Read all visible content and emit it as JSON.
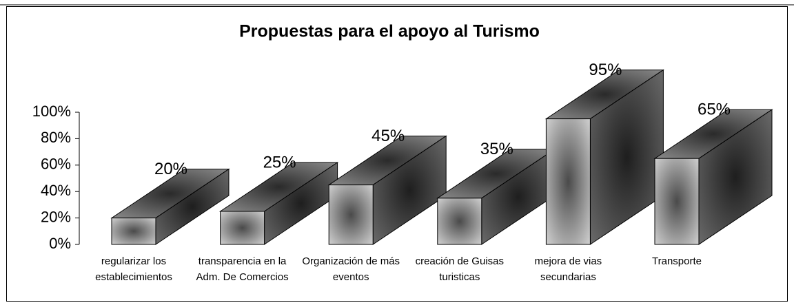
{
  "chart_data": {
    "type": "bar3d",
    "title": "Propuestas para el apoyo al Turismo",
    "categories": [
      "regularizar los establecimientos",
      "transparencia en la Adm. De Comercios",
      "Organización de más eventos",
      "creación de Guisas turisticas",
      "mejora de vias secundarias",
      "Transporte"
    ],
    "values": [
      20,
      25,
      45,
      35,
      95,
      65
    ],
    "value_labels": [
      "20%",
      "25%",
      "45%",
      "35%",
      "95%",
      "65%"
    ],
    "ylim": [
      0,
      100
    ],
    "yticks": [
      {
        "value": 0,
        "label": "0%"
      },
      {
        "value": 20,
        "label": "20%"
      },
      {
        "value": 40,
        "label": "40%"
      },
      {
        "value": 60,
        "label": "60%"
      },
      {
        "value": 80,
        "label": "80%"
      },
      {
        "value": 100,
        "label": "100%"
      }
    ],
    "color": "#808080"
  }
}
